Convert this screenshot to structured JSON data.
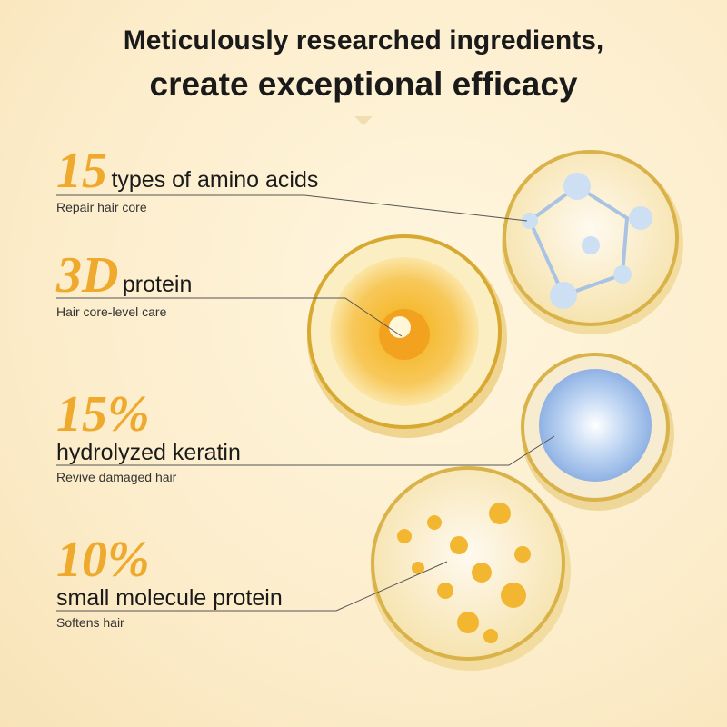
{
  "heading": {
    "line1": "Meticulously researched ingredients,",
    "line2": "create exceptional efficacy"
  },
  "features": [
    {
      "number": "15",
      "title": "types of amino acids",
      "subtitle": "Repair hair core"
    },
    {
      "number": "3D",
      "title": "protein",
      "subtitle": "Hair core-level care"
    },
    {
      "number": "15%",
      "title": "hydrolyzed keratin",
      "subtitle": "Revive damaged hair"
    },
    {
      "number": "10%",
      "title": "small molecule protein",
      "subtitle": "Softens hair"
    }
  ],
  "colors": {
    "accent": "#efa92c",
    "background": "#fcedcb",
    "text": "#1a1a1a"
  }
}
